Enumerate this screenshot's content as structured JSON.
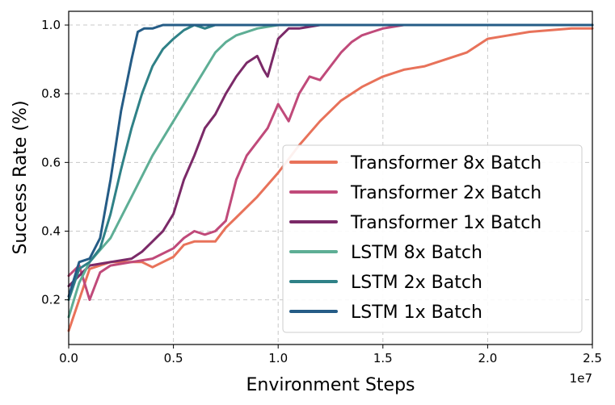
{
  "chart_data": {
    "type": "line",
    "xlabel": "Environment Steps",
    "ylabel": "Success Rate (%)",
    "x_multiplier_label": "1e7",
    "xlim": [
      0,
      2.5
    ],
    "ylim": [
      0.07,
      1.04
    ],
    "x_ticks": [
      0.0,
      0.5,
      1.0,
      1.5,
      2.0,
      2.5
    ],
    "x_tick_labels": [
      "0.0",
      "0.5",
      "1.0",
      "1.5",
      "2.0",
      "2.5"
    ],
    "y_ticks": [
      0.2,
      0.4,
      0.6,
      0.8,
      1.0
    ],
    "y_tick_labels": [
      "0.2",
      "0.4",
      "0.6",
      "0.8",
      "1.0"
    ],
    "grid": true,
    "legend_position": "lower-right",
    "series": [
      {
        "name": "Transformer 8x Batch",
        "color": "#e8725a",
        "x": [
          0,
          0.1,
          0.2,
          0.3,
          0.35,
          0.4,
          0.45,
          0.5,
          0.55,
          0.6,
          0.65,
          0.7,
          0.75,
          0.8,
          0.9,
          1.0,
          1.1,
          1.2,
          1.3,
          1.4,
          1.5,
          1.6,
          1.7,
          1.8,
          1.9,
          2.0,
          2.1,
          2.2,
          2.3,
          2.4,
          2.5
        ],
        "y": [
          0.11,
          0.29,
          0.31,
          0.31,
          0.31,
          0.295,
          0.31,
          0.325,
          0.36,
          0.37,
          0.37,
          0.37,
          0.41,
          0.44,
          0.5,
          0.57,
          0.65,
          0.72,
          0.78,
          0.82,
          0.85,
          0.87,
          0.88,
          0.9,
          0.92,
          0.96,
          0.97,
          0.98,
          0.985,
          0.99,
          0.99
        ]
      },
      {
        "name": "Transformer 2x Batch",
        "color": "#c04a7a",
        "x": [
          0,
          0.05,
          0.1,
          0.15,
          0.2,
          0.3,
          0.4,
          0.5,
          0.55,
          0.6,
          0.65,
          0.7,
          0.75,
          0.8,
          0.85,
          0.9,
          0.95,
          1.0,
          1.05,
          1.1,
          1.15,
          1.2,
          1.25,
          1.3,
          1.35,
          1.4,
          1.45,
          1.5,
          1.6,
          1.7,
          1.8,
          2.0,
          2.5
        ],
        "y": [
          0.27,
          0.3,
          0.2,
          0.28,
          0.3,
          0.31,
          0.32,
          0.35,
          0.38,
          0.4,
          0.39,
          0.4,
          0.43,
          0.55,
          0.62,
          0.66,
          0.7,
          0.77,
          0.72,
          0.8,
          0.85,
          0.84,
          0.88,
          0.92,
          0.95,
          0.97,
          0.98,
          0.99,
          1.0,
          1.0,
          1.0,
          1.0,
          1.0
        ]
      },
      {
        "name": "Transformer 1x Batch",
        "color": "#7b2a68",
        "x": [
          0,
          0.1,
          0.2,
          0.3,
          0.35,
          0.4,
          0.45,
          0.5,
          0.55,
          0.6,
          0.65,
          0.7,
          0.75,
          0.8,
          0.85,
          0.9,
          0.93,
          0.95,
          1.0,
          1.05,
          1.1,
          1.2,
          1.3,
          1.5,
          2.0,
          2.5
        ],
        "y": [
          0.24,
          0.3,
          0.31,
          0.32,
          0.34,
          0.37,
          0.4,
          0.45,
          0.55,
          0.62,
          0.7,
          0.74,
          0.8,
          0.85,
          0.89,
          0.91,
          0.87,
          0.85,
          0.96,
          0.99,
          0.99,
          1.0,
          1.0,
          1.0,
          1.0,
          1.0
        ]
      },
      {
        "name": "LSTM 8x Batch",
        "color": "#5eae95",
        "x": [
          0,
          0.05,
          0.1,
          0.2,
          0.3,
          0.4,
          0.5,
          0.6,
          0.7,
          0.75,
          0.8,
          0.9,
          1.0,
          1.2,
          1.5,
          2.0,
          2.5
        ],
        "y": [
          0.15,
          0.25,
          0.31,
          0.38,
          0.5,
          0.62,
          0.72,
          0.82,
          0.92,
          0.95,
          0.97,
          0.99,
          1.0,
          1.0,
          1.0,
          1.0,
          1.0
        ]
      },
      {
        "name": "LSTM 2x Batch",
        "color": "#2f8187",
        "x": [
          0,
          0.05,
          0.1,
          0.15,
          0.2,
          0.25,
          0.3,
          0.35,
          0.4,
          0.45,
          0.5,
          0.55,
          0.6,
          0.65,
          0.7,
          0.8,
          1.0,
          1.5,
          2.0,
          2.5
        ],
        "y": [
          0.2,
          0.29,
          0.31,
          0.35,
          0.45,
          0.58,
          0.7,
          0.8,
          0.88,
          0.93,
          0.96,
          0.985,
          1.0,
          0.99,
          1.0,
          1.0,
          1.0,
          1.0,
          1.0,
          1.0
        ]
      },
      {
        "name": "LSTM 1x Batch",
        "color": "#255c86",
        "x": [
          0,
          0.05,
          0.1,
          0.15,
          0.2,
          0.25,
          0.3,
          0.33,
          0.36,
          0.4,
          0.45,
          0.5,
          0.6,
          0.8,
          1.0,
          1.5,
          2.0,
          2.5
        ],
        "y": [
          0.21,
          0.31,
          0.32,
          0.38,
          0.55,
          0.75,
          0.9,
          0.98,
          0.99,
          0.99,
          1.0,
          1.0,
          1.0,
          1.0,
          1.0,
          1.0,
          1.0,
          1.0
        ]
      }
    ]
  }
}
